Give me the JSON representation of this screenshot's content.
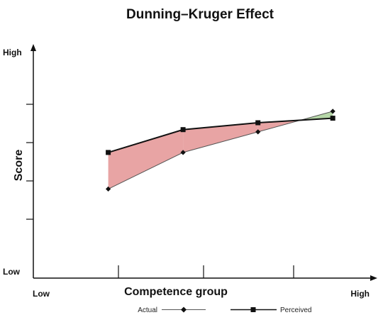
{
  "chart_data": {
    "type": "line",
    "title": "Dunning–Kruger Effect",
    "xlabel": "Competence group",
    "ylabel": "Score",
    "x_low_label": "Low",
    "x_high_label": "High",
    "y_low_label": "Low",
    "y_high_label": "High",
    "x": [
      1,
      2,
      3,
      4
    ],
    "xlim": [
      0,
      4.5
    ],
    "ylim": [
      0,
      1
    ],
    "series": [
      {
        "name": "Actual",
        "marker": "diamond",
        "color": "#555555",
        "values": [
          0.39,
          0.55,
          0.64,
          0.73
        ]
      },
      {
        "name": "Perceived",
        "marker": "square",
        "color": "#111111",
        "values": [
          0.55,
          0.65,
          0.68,
          0.7
        ]
      }
    ],
    "fill_overestimate_color": "#e8a4a4",
    "fill_underestimate_color": "#b6d7a8",
    "grid": false,
    "legend_position": "bottom"
  }
}
